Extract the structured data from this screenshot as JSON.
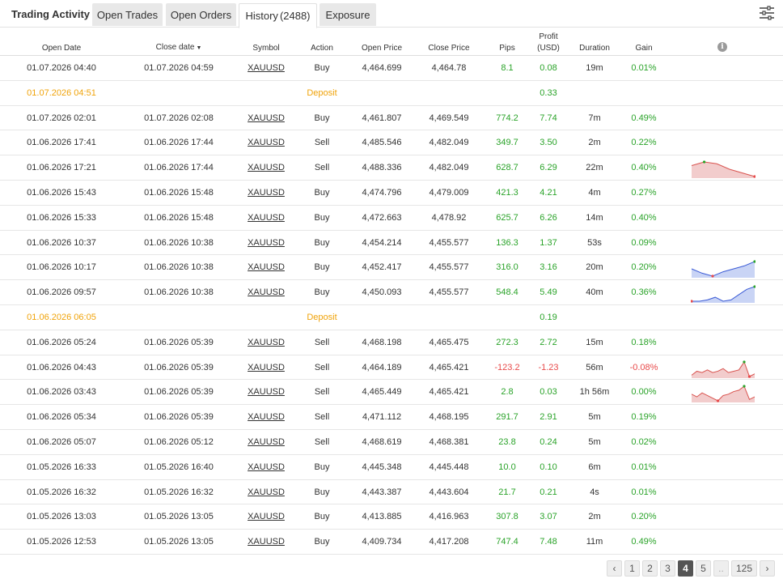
{
  "header": {
    "title": "Trading Activity",
    "tabs": [
      {
        "label": "Open Trades"
      },
      {
        "label": "Open Orders"
      },
      {
        "label": "History",
        "count": "(2488)"
      },
      {
        "label": "Exposure"
      }
    ],
    "settings_icon": "sliders-icon"
  },
  "columns": {
    "open_date": "Open Date",
    "close_date": "Close date",
    "sort_indicator": "▼",
    "symbol": "Symbol",
    "action": "Action",
    "open_price": "Open Price",
    "close_price": "Close Price",
    "pips": "Pips",
    "profit_line1": "Profit",
    "profit_line2": "(USD)",
    "duration": "Duration",
    "gain": "Gain",
    "info_icon": "i"
  },
  "colors": {
    "positive": "#2aa329",
    "negative": "#e84a4a",
    "deposit": "#f0a30a",
    "spark_up": "#3b5bd6",
    "spark_down": "#d9534f"
  },
  "rows": [
    {
      "type": "trade",
      "open": "01.07.2026 04:40",
      "close": "01.07.2026 04:59",
      "symbol": "XAUUSD",
      "action": "Buy",
      "open_price": "4,464.699",
      "close_price": "4,464.78",
      "pips": "8.1",
      "profit": "0.08",
      "duration": "19m",
      "gain": "0.01%",
      "sign": "pos"
    },
    {
      "type": "deposit",
      "open": "01.07.2026 04:51",
      "label": "Deposit",
      "profit": "0.33"
    },
    {
      "type": "trade",
      "open": "01.07.2026 02:01",
      "close": "01.07.2026 02:08",
      "symbol": "XAUUSD",
      "action": "Buy",
      "open_price": "4,461.807",
      "close_price": "4,469.549",
      "pips": "774.2",
      "profit": "7.74",
      "duration": "7m",
      "gain": "0.49%",
      "sign": "pos"
    },
    {
      "type": "trade",
      "open": "01.06.2026 17:41",
      "close": "01.06.2026 17:44",
      "symbol": "XAUUSD",
      "action": "Sell",
      "open_price": "4,485.546",
      "close_price": "4,482.049",
      "pips": "349.7",
      "profit": "3.50",
      "duration": "2m",
      "gain": "0.22%",
      "sign": "pos"
    },
    {
      "type": "trade",
      "open": "01.06.2026 17:21",
      "close": "01.06.2026 17:44",
      "symbol": "XAUUSD",
      "action": "Sell",
      "open_price": "4,488.336",
      "close_price": "4,482.049",
      "pips": "628.7",
      "profit": "6.29",
      "duration": "22m",
      "gain": "0.40%",
      "sign": "pos",
      "spark": {
        "trend": "down",
        "values": [
          6,
          8,
          7,
          4,
          2,
          0
        ]
      }
    },
    {
      "type": "trade",
      "open": "01.06.2026 15:43",
      "close": "01.06.2026 15:48",
      "symbol": "XAUUSD",
      "action": "Buy",
      "open_price": "4,474.796",
      "close_price": "4,479.009",
      "pips": "421.3",
      "profit": "4.21",
      "duration": "4m",
      "gain": "0.27%",
      "sign": "pos"
    },
    {
      "type": "trade",
      "open": "01.06.2026 15:33",
      "close": "01.06.2026 15:48",
      "symbol": "XAUUSD",
      "action": "Buy",
      "open_price": "4,472.663",
      "close_price": "4,478.92",
      "pips": "625.7",
      "profit": "6.26",
      "duration": "14m",
      "gain": "0.40%",
      "sign": "pos"
    },
    {
      "type": "trade",
      "open": "01.06.2026 10:37",
      "close": "01.06.2026 10:38",
      "symbol": "XAUUSD",
      "action": "Buy",
      "open_price": "4,454.214",
      "close_price": "4,455.577",
      "pips": "136.3",
      "profit": "1.37",
      "duration": "53s",
      "gain": "0.09%",
      "sign": "pos"
    },
    {
      "type": "trade",
      "open": "01.06.2026 10:17",
      "close": "01.06.2026 10:38",
      "symbol": "XAUUSD",
      "action": "Buy",
      "open_price": "4,452.417",
      "close_price": "4,455.577",
      "pips": "316.0",
      "profit": "3.16",
      "duration": "20m",
      "gain": "0.20%",
      "sign": "pos",
      "spark": {
        "trend": "up",
        "values": [
          5,
          2,
          0,
          3,
          5,
          7,
          10
        ]
      }
    },
    {
      "type": "trade",
      "open": "01.06.2026 09:57",
      "close": "01.06.2026 10:38",
      "symbol": "XAUUSD",
      "action": "Buy",
      "open_price": "4,450.093",
      "close_price": "4,455.577",
      "pips": "548.4",
      "profit": "5.49",
      "duration": "40m",
      "gain": "0.36%",
      "sign": "pos",
      "spark": {
        "trend": "up",
        "values": [
          0,
          0,
          1,
          3,
          0,
          1,
          5,
          9,
          11
        ]
      }
    },
    {
      "type": "deposit",
      "open": "01.06.2026 06:05",
      "label": "Deposit",
      "profit": "0.19"
    },
    {
      "type": "trade",
      "open": "01.06.2026 05:24",
      "close": "01.06.2026 05:39",
      "symbol": "XAUUSD",
      "action": "Sell",
      "open_price": "4,468.198",
      "close_price": "4,465.475",
      "pips": "272.3",
      "profit": "2.72",
      "duration": "15m",
      "gain": "0.18%",
      "sign": "pos"
    },
    {
      "type": "trade",
      "open": "01.06.2026 04:43",
      "close": "01.06.2026 05:39",
      "symbol": "XAUUSD",
      "action": "Sell",
      "open_price": "4,464.189",
      "close_price": "4,465.421",
      "pips": "-123.2",
      "profit": "-1.23",
      "duration": "56m",
      "gain": "-0.08%",
      "sign": "neg",
      "spark": {
        "trend": "down",
        "values": [
          1,
          4,
          3,
          5,
          3,
          4,
          6,
          3,
          4,
          5,
          11,
          0,
          2
        ]
      }
    },
    {
      "type": "trade",
      "open": "01.06.2026 03:43",
      "close": "01.06.2026 05:39",
      "symbol": "XAUUSD",
      "action": "Sell",
      "open_price": "4,465.449",
      "close_price": "4,465.421",
      "pips": "2.8",
      "profit": "0.03",
      "duration": "1h 56m",
      "gain": "0.00%",
      "sign": "pos",
      "spark": {
        "trend": "down",
        "values": [
          5,
          3,
          6,
          4,
          2,
          0,
          4,
          5,
          7,
          8,
          11,
          1,
          3
        ]
      }
    },
    {
      "type": "trade",
      "open": "01.06.2026 05:34",
      "close": "01.06.2026 05:39",
      "symbol": "XAUUSD",
      "action": "Sell",
      "open_price": "4,471.112",
      "close_price": "4,468.195",
      "pips": "291.7",
      "profit": "2.91",
      "duration": "5m",
      "gain": "0.19%",
      "sign": "pos"
    },
    {
      "type": "trade",
      "open": "01.06.2026 05:07",
      "close": "01.06.2026 05:12",
      "symbol": "XAUUSD",
      "action": "Sell",
      "open_price": "4,468.619",
      "close_price": "4,468.381",
      "pips": "23.8",
      "profit": "0.24",
      "duration": "5m",
      "gain": "0.02%",
      "sign": "pos"
    },
    {
      "type": "trade",
      "open": "01.05.2026 16:33",
      "close": "01.05.2026 16:40",
      "symbol": "XAUUSD",
      "action": "Buy",
      "open_price": "4,445.348",
      "close_price": "4,445.448",
      "pips": "10.0",
      "profit": "0.10",
      "duration": "6m",
      "gain": "0.01%",
      "sign": "pos"
    },
    {
      "type": "trade",
      "open": "01.05.2026 16:32",
      "close": "01.05.2026 16:32",
      "symbol": "XAUUSD",
      "action": "Buy",
      "open_price": "4,443.387",
      "close_price": "4,443.604",
      "pips": "21.7",
      "profit": "0.21",
      "duration": "4s",
      "gain": "0.01%",
      "sign": "pos"
    },
    {
      "type": "trade",
      "open": "01.05.2026 13:03",
      "close": "01.05.2026 13:05",
      "symbol": "XAUUSD",
      "action": "Buy",
      "open_price": "4,413.885",
      "close_price": "4,416.963",
      "pips": "307.8",
      "profit": "3.07",
      "duration": "2m",
      "gain": "0.20%",
      "sign": "pos"
    },
    {
      "type": "trade",
      "open": "01.05.2026 12:53",
      "close": "01.05.2026 13:05",
      "symbol": "XAUUSD",
      "action": "Buy",
      "open_price": "4,409.734",
      "close_price": "4,417.208",
      "pips": "747.4",
      "profit": "7.48",
      "duration": "11m",
      "gain": "0.49%",
      "sign": "pos"
    }
  ],
  "pagination": {
    "prev": "‹",
    "pages": [
      "1",
      "2",
      "3",
      "4",
      "5"
    ],
    "current": "4",
    "ellipsis": "..",
    "last": "125",
    "next": "›"
  }
}
